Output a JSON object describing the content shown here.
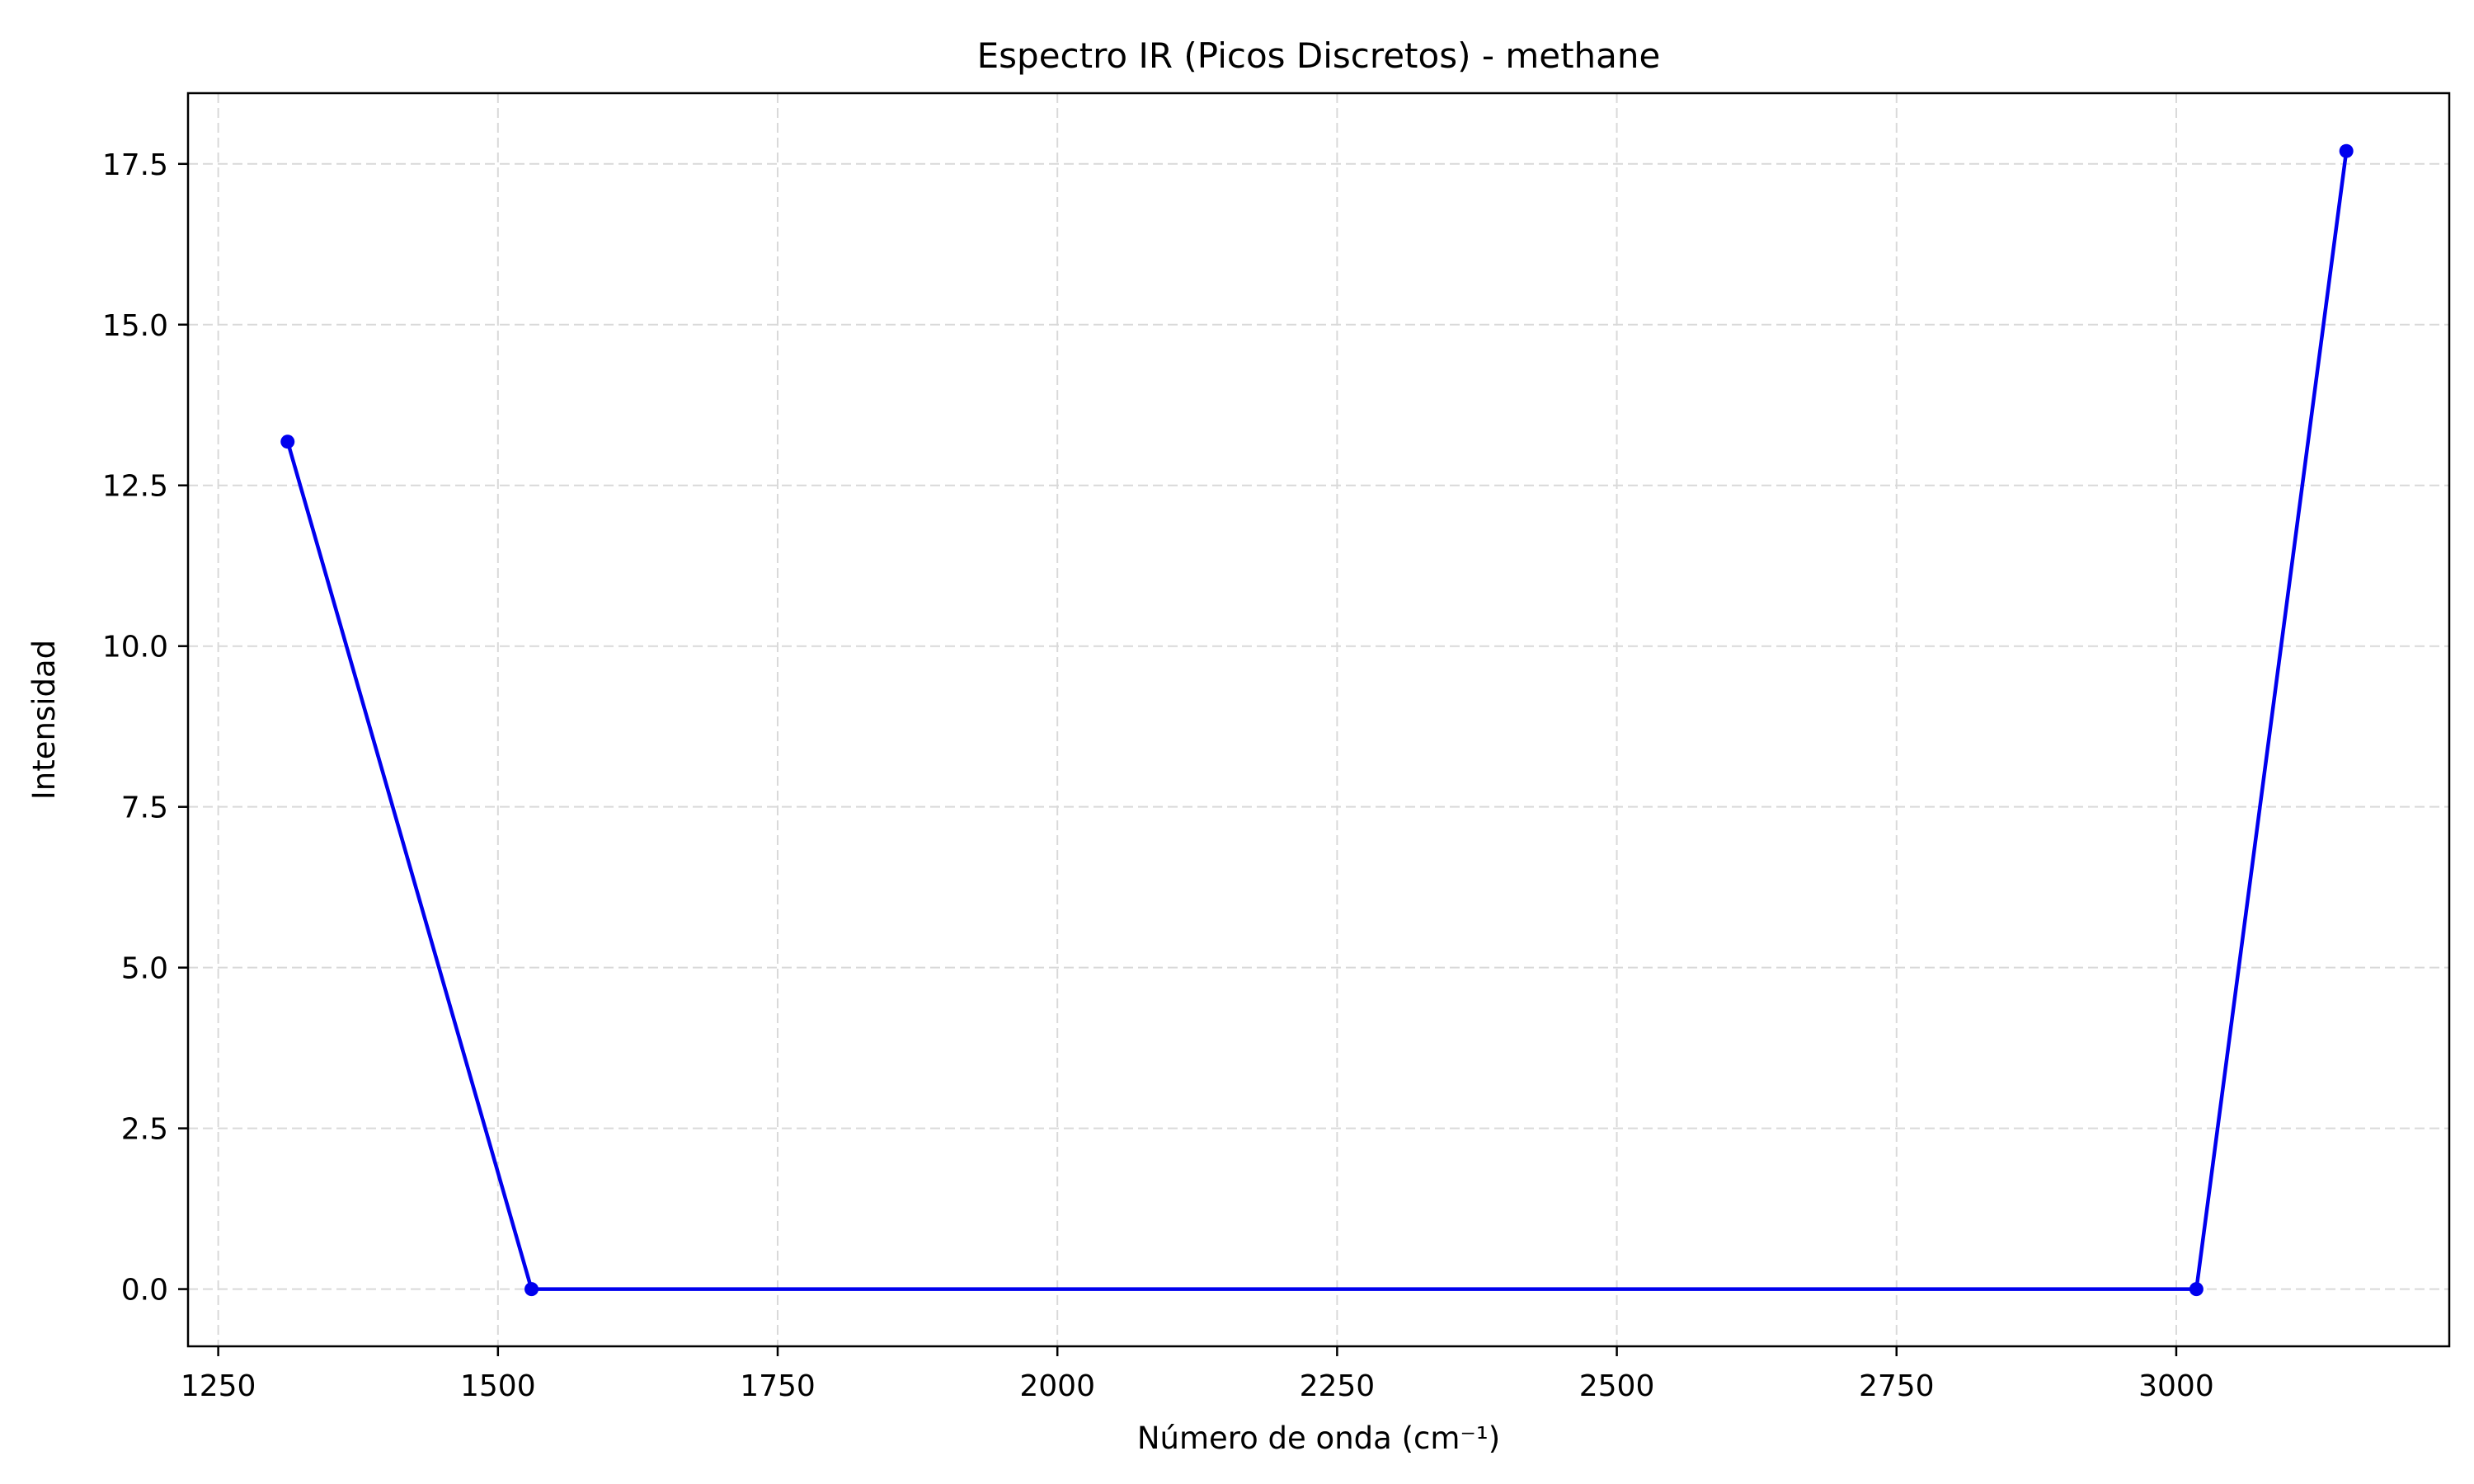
{
  "chart_data": {
    "type": "line",
    "title": "Espectro IR (Picos Discretos) - methane",
    "xlabel": "Número de onda (cm⁻¹)",
    "ylabel": "Intensidad",
    "xlim": [
      1223,
      3244
    ],
    "ylim": [
      -0.89,
      18.6
    ],
    "xticks": [
      1250,
      1500,
      1750,
      2000,
      2250,
      2500,
      2750,
      3000
    ],
    "xtick_labels": [
      "1250",
      "1500",
      "1750",
      "2000",
      "2250",
      "2500",
      "2750",
      "3000"
    ],
    "yticks": [
      0,
      2.5,
      5,
      7.5,
      10,
      12.5,
      15,
      17.5
    ],
    "ytick_labels": [
      "0.0",
      "2.5",
      "5.0",
      "7.5",
      "10.0",
      "12.5",
      "15.0",
      "17.5"
    ],
    "grid": true,
    "series": [
      {
        "color": "#0000ee",
        "marker": "circle",
        "x": [
          1312,
          1530,
          3018,
          3152
        ],
        "y": [
          13.18,
          0.0,
          0.0,
          17.7
        ]
      }
    ]
  }
}
